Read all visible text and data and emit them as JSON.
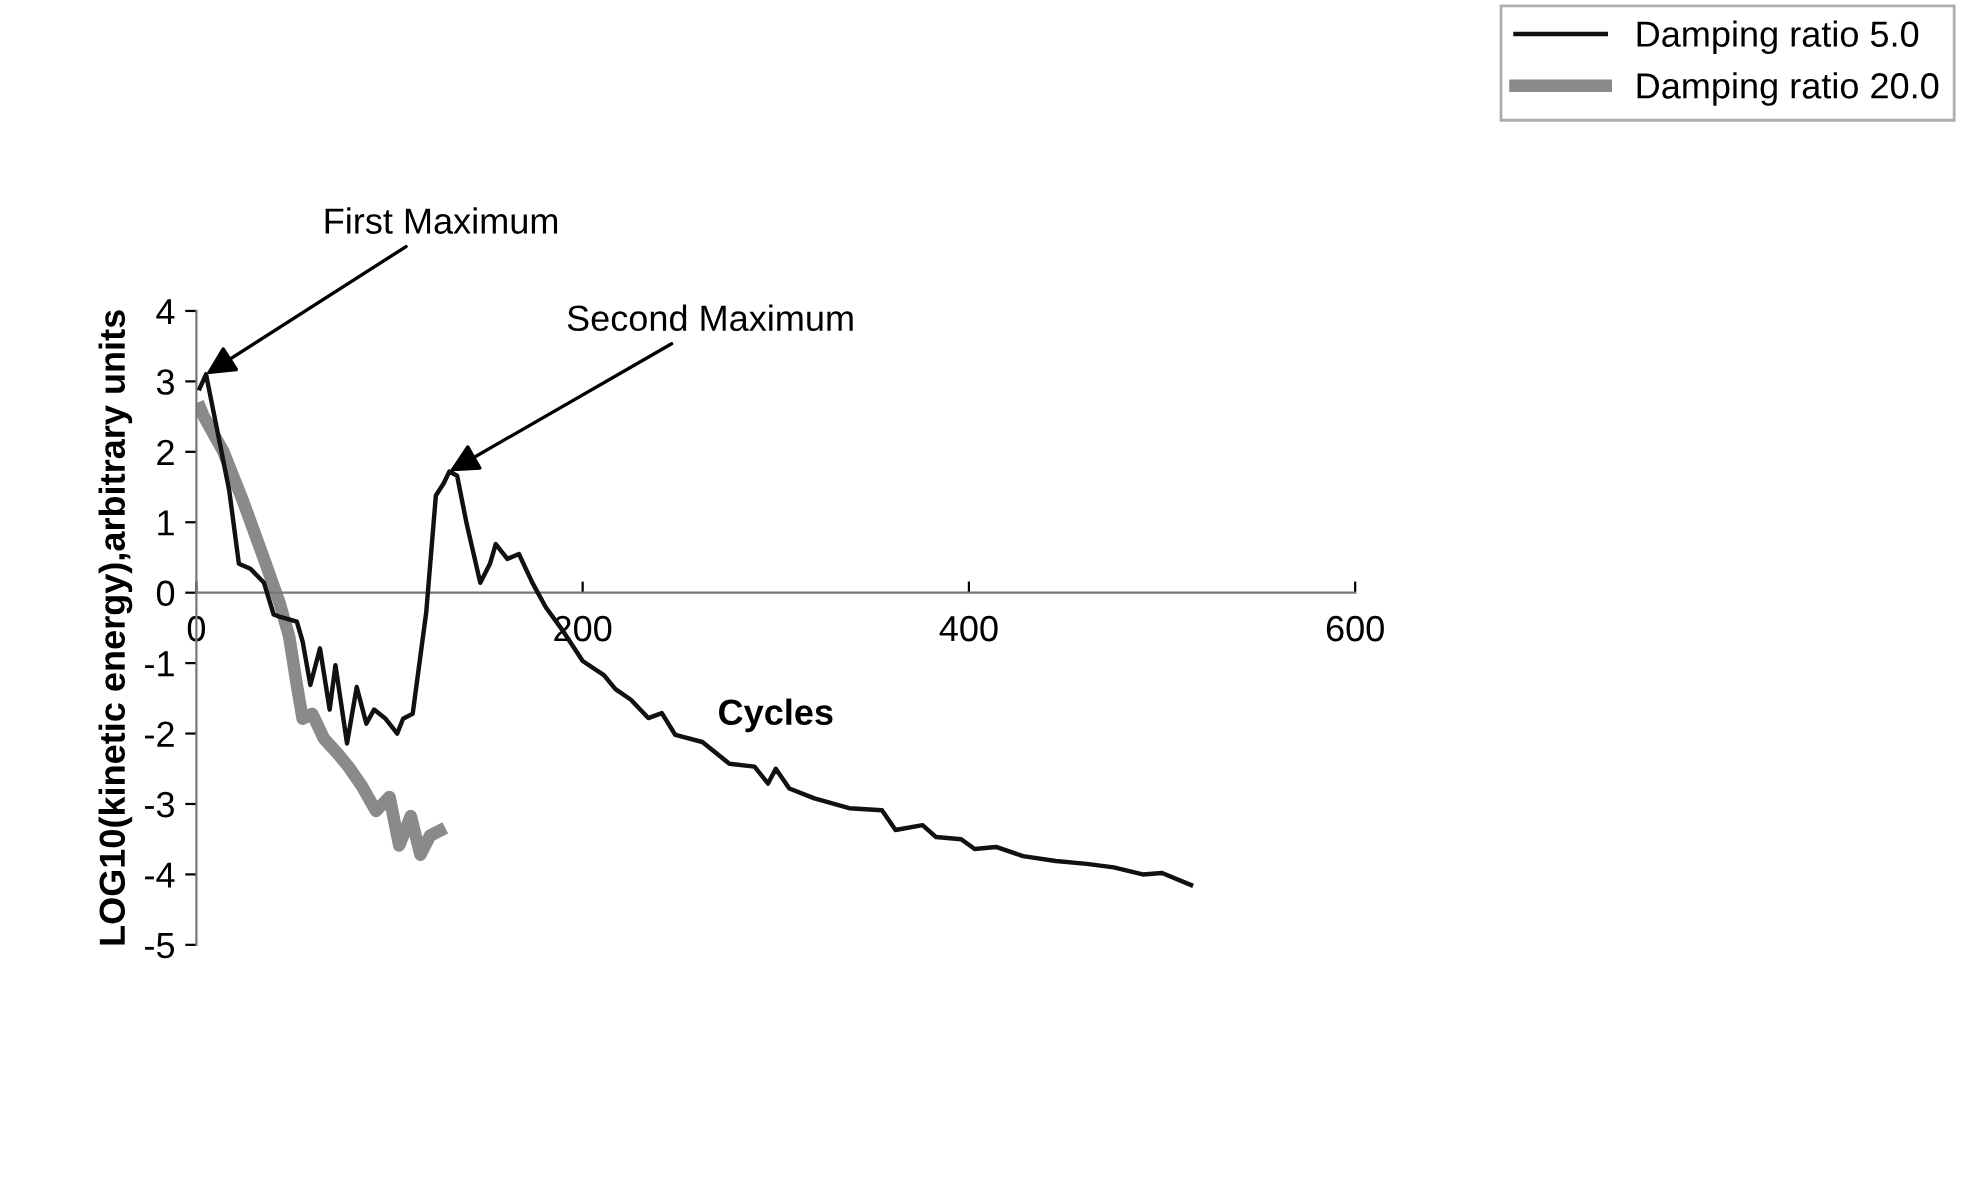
{
  "chart_data": {
    "type": "line",
    "xlabel": "Cycles",
    "ylabel": "LOG10(kinetic energy),arbitrary units",
    "xlim": [
      0,
      600
    ],
    "xticks": [
      0,
      200,
      400,
      600
    ],
    "ylim": [
      -5,
      4
    ],
    "yticks": [
      -5,
      -4,
      -3,
      -2,
      -1,
      0,
      1,
      2,
      3,
      4
    ],
    "grid": false,
    "legend": "top right",
    "marker": "none",
    "line_style": "solid",
    "annotations": [
      {
        "text": "First Maximum",
        "x": 5,
        "y": 3.1
      },
      {
        "text": "Second Maximum",
        "x": 131,
        "y": 1.72
      }
    ],
    "series": [
      {
        "name": "Damping ratio 5.0",
        "color": "#111111",
        "x": [
          1.7,
          5,
          17,
          22,
          28,
          35,
          40,
          43,
          52,
          55,
          59,
          64,
          69,
          72,
          78,
          83,
          88,
          92,
          98,
          104,
          107,
          112,
          119,
          124,
          128,
          131,
          135,
          140,
          147,
          152,
          155,
          161,
          167,
          174,
          181,
          190,
          200,
          211,
          217,
          225,
          234,
          241,
          248,
          262,
          276,
          289,
          296,
          300,
          307,
          320,
          338,
          355,
          362,
          376,
          383,
          396,
          403,
          414,
          428,
          445,
          461,
          475,
          490,
          500,
          515
        ],
        "values": [
          2.9,
          3.1,
          1.45,
          0.41,
          0.34,
          0.14,
          -0.31,
          -0.34,
          -0.41,
          -0.69,
          -1.31,
          -0.79,
          -1.66,
          -1.03,
          -2.14,
          -1.34,
          -1.86,
          -1.66,
          -1.79,
          -2.0,
          -1.79,
          -1.72,
          -0.28,
          1.38,
          1.55,
          1.72,
          1.66,
          0.97,
          0.14,
          0.41,
          0.69,
          0.48,
          0.55,
          0.14,
          -0.21,
          -0.55,
          -0.97,
          -1.17,
          -1.37,
          -1.52,
          -1.78,
          -1.71,
          -2.02,
          -2.12,
          -2.43,
          -2.47,
          -2.71,
          -2.5,
          -2.78,
          -2.92,
          -3.06,
          -3.09,
          -3.37,
          -3.3,
          -3.47,
          -3.5,
          -3.64,
          -3.61,
          -3.74,
          -3.81,
          -3.85,
          -3.9,
          -4.0,
          -3.98,
          -4.15
        ]
      },
      {
        "name": "Damping ratio 20.0",
        "color": "#8a8a8a",
        "x": [
          2,
          3.5,
          14,
          24,
          35,
          43,
          48,
          52,
          55,
          60,
          66,
          73,
          79,
          86,
          93,
          100,
          105,
          111,
          116,
          121,
          126
        ],
        "values": [
          2.62,
          2.52,
          2.0,
          1.31,
          0.48,
          -0.14,
          -0.62,
          -1.31,
          -1.79,
          -1.72,
          -2.07,
          -2.28,
          -2.48,
          -2.76,
          -3.1,
          -2.9,
          -3.59,
          -3.17,
          -3.72,
          -3.45,
          -3.38
        ]
      }
    ]
  }
}
